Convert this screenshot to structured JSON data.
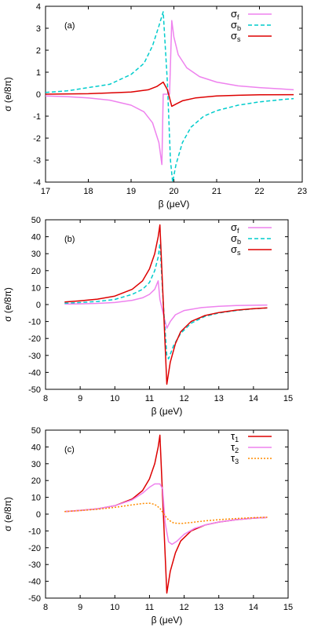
{
  "chart_data": [
    {
      "type": "line",
      "panel_label": "(a)",
      "xlabel": "β (μeV)",
      "ylabel": "σ (e/8π)",
      "xlim": [
        17,
        23
      ],
      "ylim": [
        -4,
        4
      ],
      "xticks": [
        17,
        18,
        19,
        20,
        21,
        22,
        23
      ],
      "yticks": [
        -4,
        -3,
        -2,
        -1,
        0,
        1,
        2,
        3,
        4
      ],
      "grid": false,
      "legend_position": "top-right",
      "series": [
        {
          "name": "σ_f",
          "name_base": "σ",
          "name_sub": "f",
          "color": "#ee82ee",
          "dash": "solid",
          "x": [
            17.0,
            17.5,
            18.0,
            18.5,
            19.0,
            19.3,
            19.5,
            19.65,
            19.72,
            19.75,
            19.9,
            19.95,
            20.0,
            20.1,
            20.3,
            20.6,
            21.0,
            21.5,
            22.0,
            22.5,
            22.8
          ],
          "y": [
            -0.08,
            -0.11,
            -0.17,
            -0.27,
            -0.5,
            -0.8,
            -1.3,
            -2.2,
            -3.2,
            0.0,
            0.0,
            3.35,
            2.6,
            1.8,
            1.2,
            0.8,
            0.55,
            0.38,
            0.3,
            0.24,
            0.2
          ]
        },
        {
          "name": "σ_b",
          "name_base": "σ",
          "name_sub": "b",
          "color": "#00cccc",
          "dash": "dashed",
          "x": [
            17.0,
            17.5,
            18.0,
            18.5,
            19.0,
            19.3,
            19.5,
            19.65,
            19.75,
            19.85,
            19.92,
            19.97,
            20.05,
            20.2,
            20.4,
            20.7,
            21.0,
            21.5,
            22.0,
            22.5,
            22.8
          ],
          "y": [
            0.08,
            0.15,
            0.3,
            0.45,
            0.9,
            1.4,
            2.2,
            3.1,
            3.75,
            0.5,
            -3.0,
            -4.0,
            -3.2,
            -2.2,
            -1.5,
            -1.0,
            -0.75,
            -0.5,
            -0.35,
            -0.25,
            -0.2
          ]
        },
        {
          "name": "σ_s",
          "name_base": "σ",
          "name_sub": "s",
          "color": "#dd0000",
          "dash": "solid",
          "x": [
            17.0,
            18.0,
            19.0,
            19.4,
            19.6,
            19.75,
            19.85,
            19.95,
            20.05,
            20.2,
            20.5,
            21.0,
            21.5,
            22.0,
            22.8
          ],
          "y": [
            0.0,
            0.02,
            0.1,
            0.2,
            0.35,
            0.55,
            0.2,
            -0.55,
            -0.45,
            -0.3,
            -0.17,
            -0.08,
            -0.05,
            -0.03,
            -0.02
          ]
        }
      ]
    },
    {
      "type": "line",
      "panel_label": "(b)",
      "xlabel": "β (μeV)",
      "ylabel": "σ (e/8π)",
      "xlim": [
        8,
        15
      ],
      "ylim": [
        -50,
        50
      ],
      "xticks": [
        8,
        9,
        10,
        11,
        12,
        13,
        14,
        15
      ],
      "yticks": [
        -50,
        -40,
        -30,
        -20,
        -10,
        0,
        10,
        20,
        30,
        40,
        50
      ],
      "grid": false,
      "legend_position": "top-right",
      "series": [
        {
          "name": "σ_f",
          "name_base": "σ",
          "name_sub": "f",
          "color": "#ee82ee",
          "dash": "solid",
          "x": [
            8.55,
            9.0,
            9.5,
            10.0,
            10.5,
            10.8,
            11.0,
            11.15,
            11.25,
            11.3,
            11.45,
            11.5,
            11.6,
            11.75,
            12.0,
            12.5,
            13.0,
            13.5,
            14.0,
            14.4
          ],
          "y": [
            0.3,
            0.4,
            0.7,
            1.2,
            2.5,
            4.0,
            6.0,
            9.0,
            14.0,
            3.0,
            -10.0,
            -14.0,
            -10.0,
            -6.0,
            -3.5,
            -1.8,
            -1.0,
            -0.6,
            -0.4,
            -0.3
          ]
        },
        {
          "name": "σ_b",
          "name_base": "σ",
          "name_sub": "b",
          "color": "#00cccc",
          "dash": "dashed",
          "x": [
            8.55,
            9.0,
            9.5,
            10.0,
            10.5,
            10.8,
            11.0,
            11.15,
            11.25,
            11.3,
            11.4,
            11.5,
            11.55,
            11.7,
            11.9,
            12.2,
            12.6,
            13.0,
            13.5,
            14.0,
            14.4
          ],
          "y": [
            0.8,
            1.2,
            1.8,
            3.0,
            6.0,
            9.0,
            13.0,
            20.0,
            28.0,
            36.0,
            0.0,
            -30.0,
            -32.0,
            -24.0,
            -17.0,
            -11.0,
            -7.0,
            -5.0,
            -3.5,
            -2.5,
            -2.0
          ]
        },
        {
          "name": "σ_s",
          "name_base": "σ",
          "name_sub": "s",
          "color": "#dd0000",
          "dash": "solid",
          "x": [
            8.55,
            9.0,
            9.5,
            10.0,
            10.5,
            10.8,
            11.0,
            11.15,
            11.25,
            11.3,
            11.5,
            11.6,
            11.75,
            11.9,
            12.2,
            12.6,
            13.0,
            13.5,
            14.0,
            14.4
          ],
          "y": [
            1.5,
            2.2,
            3.2,
            5.0,
            9.0,
            14.0,
            21.0,
            30.0,
            40.0,
            47.0,
            -47.0,
            -34.0,
            -23.0,
            -16.0,
            -10.0,
            -6.5,
            -4.7,
            -3.3,
            -2.4,
            -2.0
          ]
        }
      ]
    },
    {
      "type": "line",
      "panel_label": "(c)",
      "xlabel": "β (μeV)",
      "ylabel": "σ (e/8π)",
      "xlim": [
        8,
        15
      ],
      "ylim": [
        -50,
        50
      ],
      "xticks": [
        8,
        9,
        10,
        11,
        12,
        13,
        14,
        15
      ],
      "yticks": [
        -50,
        -40,
        -30,
        -20,
        -10,
        0,
        10,
        20,
        30,
        40,
        50
      ],
      "grid": false,
      "legend_position": "top-right",
      "series": [
        {
          "name": "τ_1",
          "name_base": "τ",
          "name_sub": "1",
          "color": "#dd0000",
          "dash": "solid",
          "x": [
            8.55,
            9.0,
            9.5,
            10.0,
            10.5,
            10.8,
            11.0,
            11.15,
            11.25,
            11.3,
            11.5,
            11.6,
            11.75,
            11.9,
            12.2,
            12.6,
            13.0,
            13.5,
            14.0,
            14.4
          ],
          "y": [
            1.5,
            2.2,
            3.2,
            5.0,
            9.0,
            14.0,
            21.0,
            30.0,
            40.0,
            47.0,
            -47.0,
            -34.0,
            -23.0,
            -16.0,
            -10.0,
            -6.5,
            -4.7,
            -3.3,
            -2.4,
            -2.0
          ]
        },
        {
          "name": "τ_2",
          "name_base": "τ",
          "name_sub": "2",
          "color": "#ee82ee",
          "dash": "solid",
          "x": [
            8.55,
            9.0,
            9.5,
            10.0,
            10.5,
            10.8,
            11.0,
            11.15,
            11.3,
            11.38,
            11.45,
            11.55,
            11.65,
            11.8,
            12.0,
            12.3,
            12.6,
            13.0,
            13.5,
            14.0,
            14.4
          ],
          "y": [
            1.5,
            2.2,
            3.2,
            5.0,
            8.5,
            12.5,
            16.0,
            18.0,
            18.0,
            15.0,
            -5.0,
            -16.5,
            -18.0,
            -16.0,
            -12.0,
            -8.5,
            -6.5,
            -4.7,
            -3.3,
            -2.4,
            -2.0
          ]
        },
        {
          "name": "τ_3",
          "name_base": "τ",
          "name_sub": "3",
          "color": "#ff8c00",
          "dash": "dotted",
          "x": [
            8.55,
            9.0,
            9.5,
            10.0,
            10.5,
            10.8,
            11.0,
            11.15,
            11.3,
            11.45,
            11.55,
            11.7,
            11.9,
            12.2,
            12.6,
            13.0,
            13.5,
            14.0,
            14.4
          ],
          "y": [
            1.5,
            2.1,
            2.9,
            4.0,
            5.5,
            6.3,
            6.5,
            5.8,
            3.5,
            -1.0,
            -3.5,
            -5.3,
            -5.6,
            -5.0,
            -4.0,
            -3.3,
            -2.6,
            -2.1,
            -1.8
          ]
        }
      ]
    }
  ]
}
